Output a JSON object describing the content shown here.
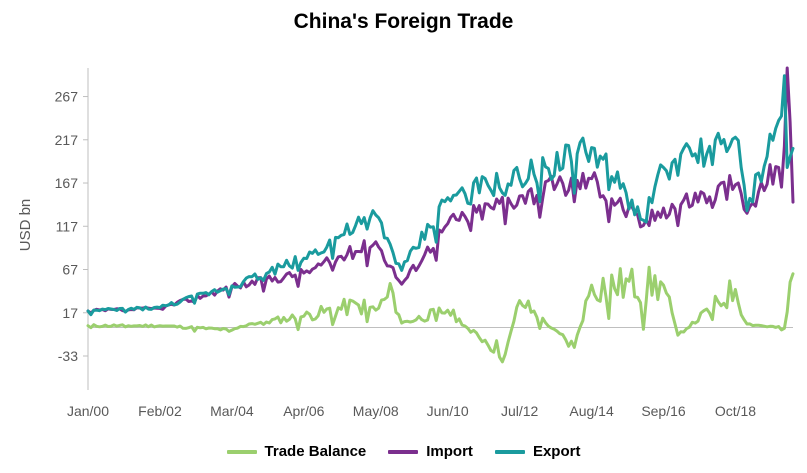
{
  "chart_data": {
    "type": "line",
    "title": "China's Foreign Trade",
    "xlabel": "",
    "ylabel": "USD bn",
    "x_tick_labels": [
      "Jan/00",
      "Feb/02",
      "Mar/04",
      "Apr/06",
      "May/08",
      "Jun/10",
      "Jul/12",
      "Aug/14",
      "Sep/16",
      "Oct/18"
    ],
    "y_ticks": [
      -33,
      17,
      67,
      117,
      167,
      217,
      267
    ],
    "ylim": [
      -33,
      300
    ],
    "grid": false,
    "legend_position": "bottom",
    "series": [
      {
        "name": "Trade Balance",
        "color": "#9bcf6e",
        "points": [
          [
            "Jan/00",
            2
          ],
          [
            "Feb/02",
            2
          ],
          [
            "Mar/04",
            -3
          ],
          [
            "Sep/04",
            4
          ],
          [
            "Apr/06",
            13
          ],
          [
            "Nov/07",
            26
          ],
          [
            "May/08",
            20
          ],
          [
            "Nov/08",
            40
          ],
          [
            "Feb/09",
            5
          ],
          [
            "Jun/10",
            20
          ],
          [
            "Jan/11",
            -1
          ],
          [
            "Jul/12",
            31
          ],
          [
            "Feb/12",
            -31
          ],
          [
            "Aug/14",
            49
          ],
          [
            "Feb/14",
            -23
          ],
          [
            "Sep/16",
            49
          ],
          [
            "Feb/17",
            -9
          ],
          [
            "Oct/18",
            44
          ],
          [
            "Feb/19",
            4
          ],
          [
            "Mar/20",
            -1
          ],
          [
            "Jun/20",
            62
          ]
        ]
      },
      {
        "name": "Import",
        "color": "#7b2f8e",
        "points": [
          [
            "Jan/00",
            19
          ],
          [
            "Feb/02",
            22
          ],
          [
            "Mar/04",
            47
          ],
          [
            "Apr/06",
            63
          ],
          [
            "May/08",
            99
          ],
          [
            "Feb/09",
            50
          ],
          [
            "Jun/10",
            120
          ],
          [
            "Jul/12",
            152
          ],
          [
            "Aug/14",
            172
          ],
          [
            "Feb/16",
            118
          ],
          [
            "Sep/16",
            138
          ],
          [
            "Oct/18",
            165
          ],
          [
            "Feb/19",
            132
          ],
          [
            "Dec/19",
            186
          ],
          [
            "Mar/20",
            210
          ],
          [
            "Apr/20",
            300
          ],
          [
            "Jun/20",
            145
          ]
        ]
      },
      {
        "name": "Export",
        "color": "#1a9b9e",
        "points": [
          [
            "Jan/00",
            19
          ],
          [
            "Feb/02",
            23
          ],
          [
            "Mar/04",
            48
          ],
          [
            "Apr/06",
            80
          ],
          [
            "May/08",
            130
          ],
          [
            "Feb/09",
            66
          ],
          [
            "Jun/10",
            150
          ],
          [
            "Jul/12",
            172
          ],
          [
            "Aug/14",
            208
          ],
          [
            "Feb/16",
            124
          ],
          [
            "Sep/16",
            185
          ],
          [
            "Oct/18",
            220
          ],
          [
            "Feb/19",
            135
          ],
          [
            "Dec/19",
            230
          ],
          [
            "Mar/20",
            291
          ],
          [
            "Apr/20",
            185
          ],
          [
            "Jun/20",
            207
          ]
        ]
      }
    ]
  }
}
